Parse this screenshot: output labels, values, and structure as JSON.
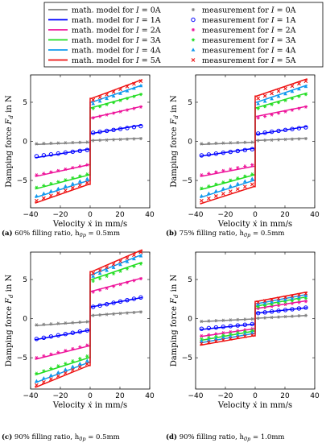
{
  "legend": {
    "model_entries": [
      {
        "text": "math. model for I = 0A",
        "prefix": "math. model for ",
        "var": "I",
        "suffix": " = 0A",
        "color": "#808080"
      },
      {
        "text": "math. model for I = 1A",
        "prefix": "math. model for ",
        "var": "I",
        "suffix": " = 1A",
        "color": "#0000ff"
      },
      {
        "text": "math. model for I = 2A",
        "prefix": "math. model for ",
        "var": "I",
        "suffix": " = 2A",
        "color": "#ee1199"
      },
      {
        "text": "math. model for I = 3A",
        "prefix": "math. model for ",
        "var": "I",
        "suffix": " = 3A",
        "color": "#22dd22"
      },
      {
        "text": "math. model for I = 4A",
        "prefix": "math. model for ",
        "var": "I",
        "suffix": " = 4A",
        "color": "#1199ee"
      },
      {
        "text": "math. model for I = 5A",
        "prefix": "math. model for ",
        "var": "I",
        "suffix": " = 5A",
        "color": "#ee1111"
      }
    ],
    "measurement_entries": [
      {
        "text": "measurement for I = 0A",
        "prefix": "measurement for ",
        "var": "I",
        "suffix": " = 0A",
        "marker": "star",
        "color": "#808080"
      },
      {
        "text": "measurement for I = 1A",
        "prefix": "measurement for ",
        "var": "I",
        "suffix": " = 1A",
        "marker": "circle",
        "color": "#0000ff"
      },
      {
        "text": "measurement for I = 2A",
        "prefix": "measurement for ",
        "var": "I",
        "suffix": " = 2A",
        "marker": "star",
        "color": "#ee1199"
      },
      {
        "text": "measurement for I = 3A",
        "prefix": "measurement for ",
        "var": "I",
        "suffix": " = 3A",
        "marker": "star",
        "color": "#22dd22"
      },
      {
        "text": "measurement for I = 4A",
        "prefix": "measurement for ",
        "var": "I",
        "suffix": " = 4A",
        "marker": "triangle",
        "color": "#1199ee"
      },
      {
        "text": "measurement for I = 5A",
        "prefix": "measurement for ",
        "var": "I",
        "suffix": " = 5A",
        "marker": "cross",
        "color": "#ee1111"
      }
    ]
  },
  "chart_data": [
    {
      "type": "line",
      "panel": "a",
      "caption": {
        "label": "(a)",
        "text": "60% filling ratio, h",
        "sub": "0p",
        "suffix": " = 0.5mm"
      },
      "xlabel": {
        "prefix": "Velocity ",
        "var": "ẋ",
        "suffix": " in mm/s"
      },
      "ylabel": {
        "prefix": "Damping force ",
        "var": "F",
        "sub": "d",
        "suffix": " in N"
      },
      "xlim": [
        -40,
        40
      ],
      "ylim": [
        -8.5,
        8.5
      ],
      "xticks": [
        -40,
        -20,
        0,
        20,
        40
      ],
      "yticks": [
        -5,
        0,
        5
      ],
      "series": [
        {
          "current_A": 0,
          "model": {
            "neg_end": -0.4,
            "neg_jump": -0.12,
            "pos_jump": 0.12,
            "pos_end": 0.4
          },
          "measured": {
            "neg_end": -0.3,
            "neg_jump": -0.1,
            "pos_jump": 0.1,
            "pos_end": 0.35
          }
        },
        {
          "current_A": 1,
          "model": {
            "neg_end": -2.1,
            "neg_jump": -1.0,
            "pos_jump": 1.0,
            "pos_end": 2.1
          },
          "measured": {
            "neg_end": -1.9,
            "neg_jump": -1.1,
            "pos_jump": 1.1,
            "pos_end": 1.95
          }
        },
        {
          "current_A": 2,
          "model": {
            "neg_end": -4.5,
            "neg_jump": -3.0,
            "pos_jump": 3.0,
            "pos_end": 4.5
          },
          "measured": {
            "neg_end": -4.3,
            "neg_jump": -3.0,
            "pos_jump": 3.0,
            "pos_end": 4.4
          }
        },
        {
          "current_A": 3,
          "model": {
            "neg_end": -6.1,
            "neg_jump": -4.3,
            "pos_jump": 4.3,
            "pos_end": 6.1
          },
          "measured": {
            "neg_end": -5.9,
            "neg_jump": -4.2,
            "pos_jump": 4.2,
            "pos_end": 6.0
          }
        },
        {
          "current_A": 4,
          "model": {
            "neg_end": -7.2,
            "neg_jump": -5.0,
            "pos_jump": 5.0,
            "pos_end": 7.2
          },
          "measured": {
            "neg_end": -7.0,
            "neg_jump": -4.8,
            "pos_jump": 4.8,
            "pos_end": 7.1
          }
        },
        {
          "current_A": 5,
          "model": {
            "neg_end": -7.9,
            "neg_jump": -5.5,
            "pos_jump": 5.5,
            "pos_end": 7.9
          },
          "measured": {
            "neg_end": -7.6,
            "neg_jump": -5.3,
            "pos_jump": 5.3,
            "pos_end": 7.7
          }
        }
      ]
    },
    {
      "type": "line",
      "panel": "b",
      "caption": {
        "label": "(b)",
        "text": "75% filling ratio, h",
        "sub": "0p",
        "suffix": " = 0.5mm"
      },
      "xlabel": {
        "prefix": "Velocity ",
        "var": "ẋ",
        "suffix": " in mm/s"
      },
      "ylabel": {
        "prefix": "Damping force ",
        "var": "F",
        "sub": "d",
        "suffix": " in N"
      },
      "xlim": [
        -40,
        40
      ],
      "ylim": [
        -8.5,
        8.5
      ],
      "xticks": [
        -40,
        -20,
        0,
        20,
        40
      ],
      "yticks": [
        -5,
        0,
        5
      ],
      "series": [
        {
          "current_A": 0,
          "model": {
            "neg_end": -0.4,
            "neg_jump": -0.12,
            "pos_jump": 0.12,
            "pos_end": 0.4
          },
          "measured": {
            "neg_end": -0.3,
            "neg_jump": -0.1,
            "pos_jump": 0.1,
            "pos_end": 0.35
          }
        },
        {
          "current_A": 1,
          "model": {
            "neg_end": -1.9,
            "neg_jump": -0.9,
            "pos_jump": 0.9,
            "pos_end": 1.9
          },
          "measured": {
            "neg_end": -1.8,
            "neg_jump": -1.0,
            "pos_jump": 1.0,
            "pos_end": 1.8
          }
        },
        {
          "current_A": 2,
          "model": {
            "neg_end": -4.5,
            "neg_jump": -3.2,
            "pos_jump": 3.2,
            "pos_end": 4.5
          },
          "measured": {
            "neg_end": -4.3,
            "neg_jump": -3.0,
            "pos_jump": 3.0,
            "pos_end": 4.4
          }
        },
        {
          "current_A": 3,
          "model": {
            "neg_end": -6.2,
            "neg_jump": -4.3,
            "pos_jump": 4.3,
            "pos_end": 6.2
          },
          "measured": {
            "neg_end": -6.0,
            "neg_jump": -4.2,
            "pos_jump": 4.2,
            "pos_end": 6.0
          }
        },
        {
          "current_A": 4,
          "model": {
            "neg_end": -7.2,
            "neg_jump": -5.0,
            "pos_jump": 5.0,
            "pos_end": 7.2
          },
          "measured": {
            "neg_end": -7.0,
            "neg_jump": -4.8,
            "pos_jump": 4.8,
            "pos_end": 7.0
          }
        },
        {
          "current_A": 5,
          "model": {
            "neg_end": -8.0,
            "neg_jump": -5.8,
            "pos_jump": 5.8,
            "pos_end": 8.0
          },
          "measured": {
            "neg_end": -7.6,
            "neg_jump": -5.5,
            "pos_jump": 5.5,
            "pos_end": 7.7
          }
        }
      ]
    },
    {
      "type": "line",
      "panel": "c",
      "caption": {
        "label": "(c)",
        "text": "90% filling ratio, h",
        "sub": "0p",
        "suffix": " = 0.5mm"
      },
      "xlabel": {
        "prefix": "Velocity ",
        "var": "ẋ",
        "suffix": " in mm/s"
      },
      "ylabel": {
        "prefix": "Damping force ",
        "var": "F",
        "sub": "d",
        "suffix": " in N"
      },
      "xlim": [
        -40,
        40
      ],
      "ylim": [
        -9.0,
        8.5
      ],
      "xticks": [
        -40,
        -20,
        0,
        20,
        40
      ],
      "yticks": [
        -5,
        0,
        5
      ],
      "series": [
        {
          "current_A": 0,
          "model": {
            "neg_end": -0.9,
            "neg_jump": -0.4,
            "pos_jump": 0.4,
            "pos_end": 0.9
          },
          "measured": {
            "neg_end": -0.8,
            "neg_jump": -0.4,
            "pos_jump": 0.4,
            "pos_end": 0.85
          }
        },
        {
          "current_A": 1,
          "model": {
            "neg_end": -2.7,
            "neg_jump": -1.5,
            "pos_jump": 1.5,
            "pos_end": 2.7
          },
          "measured": {
            "neg_end": -2.6,
            "neg_jump": -1.5,
            "pos_jump": 1.5,
            "pos_end": 2.7
          }
        },
        {
          "current_A": 2,
          "model": {
            "neg_end": -5.2,
            "neg_jump": -3.5,
            "pos_jump": 3.5,
            "pos_end": 5.2
          },
          "measured": {
            "neg_end": -5.0,
            "neg_jump": -3.4,
            "pos_jump": 3.4,
            "pos_end": 5.1
          }
        },
        {
          "current_A": 3,
          "model": {
            "neg_end": -7.2,
            "neg_jump": -5.0,
            "pos_jump": 5.0,
            "pos_end": 7.2
          },
          "measured": {
            "neg_end": -7.0,
            "neg_jump": -4.8,
            "pos_jump": 4.8,
            "pos_end": 7.0
          }
        },
        {
          "current_A": 4,
          "model": {
            "neg_end": -8.2,
            "neg_jump": -5.6,
            "pos_jump": 5.6,
            "pos_end": 8.2
          },
          "measured": {
            "neg_end": -8.0,
            "neg_jump": -5.4,
            "pos_jump": 5.4,
            "pos_end": 8.0
          }
        },
        {
          "current_A": 5,
          "model": {
            "neg_end": -8.8,
            "neg_jump": -6.0,
            "pos_jump": 6.0,
            "pos_end": 8.8
          },
          "measured": {
            "neg_end": -8.5,
            "neg_jump": -5.8,
            "pos_jump": 5.8,
            "pos_end": 8.5
          }
        }
      ]
    },
    {
      "type": "line",
      "panel": "d",
      "caption": {
        "label": "(d)",
        "text": "90% filling ratio, h",
        "sub": "0p",
        "suffix": " = 1.0mm"
      },
      "xlabel": {
        "prefix": "Velocity ",
        "var": "ẋ",
        "suffix": " in mm/s"
      },
      "ylabel": {
        "prefix": "Damping force ",
        "var": "F",
        "sub": "d",
        "suffix": " in N"
      },
      "xlim": [
        -40,
        40
      ],
      "ylim": [
        -9.0,
        8.5
      ],
      "xticks": [
        -40,
        -20,
        0,
        20,
        40
      ],
      "yticks": [
        -5,
        0,
        5
      ],
      "series": [
        {
          "current_A": 0,
          "model": {
            "neg_end": -0.4,
            "neg_jump": -0.05,
            "pos_jump": 0.05,
            "pos_end": 0.4
          },
          "measured": {
            "neg_end": -0.35,
            "neg_jump": -0.05,
            "pos_jump": 0.05,
            "pos_end": 0.4
          }
        },
        {
          "current_A": 1,
          "model": {
            "neg_end": -1.4,
            "neg_jump": -0.7,
            "pos_jump": 0.7,
            "pos_end": 1.4
          },
          "measured": {
            "neg_end": -1.3,
            "neg_jump": -0.7,
            "pos_jump": 0.7,
            "pos_end": 1.4
          }
        },
        {
          "current_A": 2,
          "model": {
            "neg_end": -2.3,
            "neg_jump": -1.3,
            "pos_jump": 1.3,
            "pos_end": 2.3
          },
          "measured": {
            "neg_end": -2.2,
            "neg_jump": -1.3,
            "pos_jump": 1.3,
            "pos_end": 2.2
          }
        },
        {
          "current_A": 3,
          "model": {
            "neg_end": -2.8,
            "neg_jump": -1.6,
            "pos_jump": 1.6,
            "pos_end": 2.8
          },
          "measured": {
            "neg_end": -2.6,
            "neg_jump": -1.5,
            "pos_jump": 1.5,
            "pos_end": 2.6
          }
        },
        {
          "current_A": 4,
          "model": {
            "neg_end": -3.1,
            "neg_jump": -1.9,
            "pos_jump": 1.9,
            "pos_end": 3.1
          },
          "measured": {
            "neg_end": -2.9,
            "neg_jump": -1.8,
            "pos_jump": 1.8,
            "pos_end": 2.9
          }
        },
        {
          "current_A": 5,
          "model": {
            "neg_end": -3.4,
            "neg_jump": -2.2,
            "pos_jump": 2.2,
            "pos_end": 3.4
          },
          "measured": {
            "neg_end": -3.2,
            "neg_jump": -2.1,
            "pos_jump": 2.1,
            "pos_end": 3.2
          }
        }
      ]
    }
  ]
}
